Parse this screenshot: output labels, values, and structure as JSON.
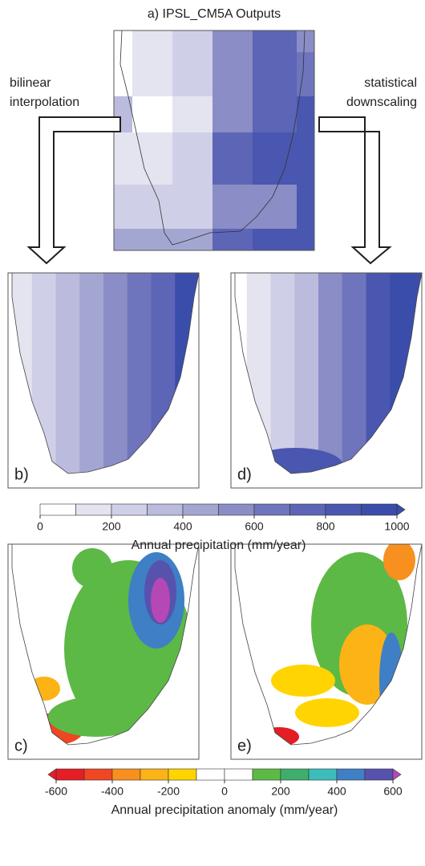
{
  "title": "a) IPSL_CM5A Outputs",
  "grid_a": [
    [
      0,
      100,
      200,
      500,
      700,
      500
    ],
    [
      0,
      100,
      200,
      500,
      700,
      600
    ],
    [
      300,
      0,
      100,
      500,
      700,
      800
    ],
    [
      100,
      100,
      200,
      700,
      800,
      800
    ],
    [
      200,
      200,
      200,
      500,
      500,
      800
    ],
    [
      400,
      400,
      400,
      700,
      800,
      800
    ]
  ],
  "left_arrow": [
    "bilinear",
    "interpolation"
  ],
  "right_arrow": [
    "statistical",
    "downscaling"
  ],
  "panel_labels": [
    "b)",
    "d)",
    "c)",
    "e)"
  ],
  "colorbars": [
    {
      "lim": [
        0,
        1000
      ],
      "ticks": [
        0,
        200,
        400,
        600,
        800,
        1000
      ],
      "label": "Annual precipitation (mm/year)",
      "extend": "max",
      "colors": [
        "#ffffff",
        "#e4e4f1",
        "#cfd0e8",
        "#babbdd",
        "#a4a6d2",
        "#8a8dc6",
        "#6f75bc",
        "#5c65b6",
        "#4a57b0",
        "#3b4dab"
      ]
    },
    {
      "lim": [
        -600,
        600
      ],
      "ticks": [
        -600,
        -400,
        -200,
        0,
        200,
        400,
        600
      ],
      "label": "Annual precipitation anomaly (mm/year)",
      "extend": "both",
      "colors": [
        "#e31e24",
        "#ef4723",
        "#f7901e",
        "#fcb316",
        "#ffd400",
        "#ffffff",
        "#ffffff",
        "#5cb946",
        "#3fae6c",
        "#3dbcbc",
        "#3f7fc5",
        "#5752ad"
      ],
      "under_color": "#e31e24",
      "over_color": "#b548b5"
    }
  ]
}
